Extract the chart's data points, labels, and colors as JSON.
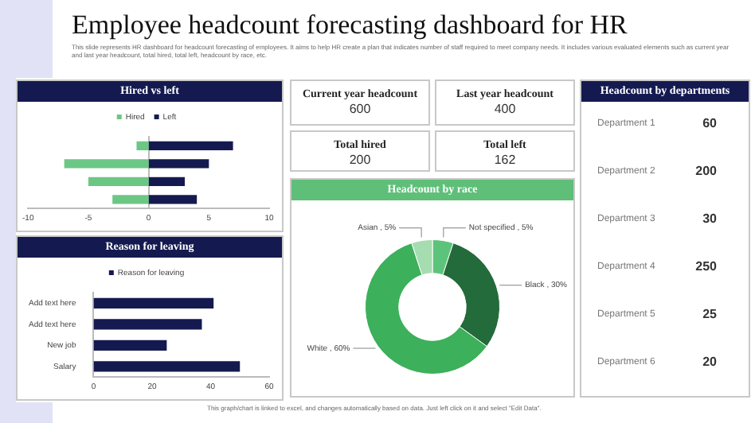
{
  "chart_data": [
    {
      "type": "other",
      "title": "Employee headcount forecasting dashboard for HR",
      "subtitle": "This slide represents HR dashboard for headcount forecasting of employees. It aims to help HR create a plan that indicates number of staff required to meet company needs. It includes various evaluated elements such as current year and last year headcount, total hired, total left, headcount by race, etc.",
      "annotations": [
        "This graph/chart is linked to excel, and changes automatically based on data. Just left click on it and select \"Edit Data\"."
      ]
    },
    {
      "type": "bar",
      "title": "Hired vs left",
      "orientation": "horizontal",
      "stacked": true,
      "legend": "top",
      "categories": [
        null,
        null,
        null,
        null
      ],
      "xlim": [
        -10,
        10
      ],
      "xticks": [
        -10,
        -5,
        0,
        5,
        10
      ],
      "series": [
        {
          "name": "Hired",
          "color": "#6cc785",
          "values": [
            -1,
            -7,
            -5,
            -3
          ]
        },
        {
          "name": "Left",
          "color": "#141a4f",
          "values": [
            7,
            5,
            3,
            4
          ]
        }
      ]
    },
    {
      "type": "other",
      "annotations": [
        "Current year headcount",
        "600",
        "Last year headcount",
        "400",
        "Total hired",
        "200",
        "Total left",
        "162"
      ]
    },
    {
      "type": "other",
      "title": "Headcount by departments",
      "annotations": [
        "Department 1",
        "60",
        "Department 2",
        "200",
        "Department 3",
        "30",
        "Department 4",
        "250",
        "Department 5",
        "25",
        "Department 6",
        "20"
      ]
    },
    {
      "type": "bar",
      "title": "Reason for leaving",
      "orientation": "horizontal",
      "legend": "top",
      "categories": [
        "Add text here",
        "Add text here",
        "New job",
        "Salary"
      ],
      "xlim": [
        0,
        60
      ],
      "xticks": [
        0,
        20,
        40,
        60
      ],
      "series": [
        {
          "name": "Reason for leaving",
          "color": "#141a4f",
          "values": [
            41,
            37,
            25,
            50
          ]
        }
      ]
    },
    {
      "type": "donut",
      "title": "Headcount by race",
      "categories": [
        "Not specified",
        "Black",
        "White",
        "Asian"
      ],
      "values": [
        5,
        30,
        60,
        5
      ],
      "colors": [
        "#5cc47a",
        "#236b3a",
        "#3cb05a",
        "#a5dcb0"
      ],
      "value_labels": [
        ", 5%",
        ", 30%",
        ", 60%",
        ", 5%"
      ]
    }
  ]
}
